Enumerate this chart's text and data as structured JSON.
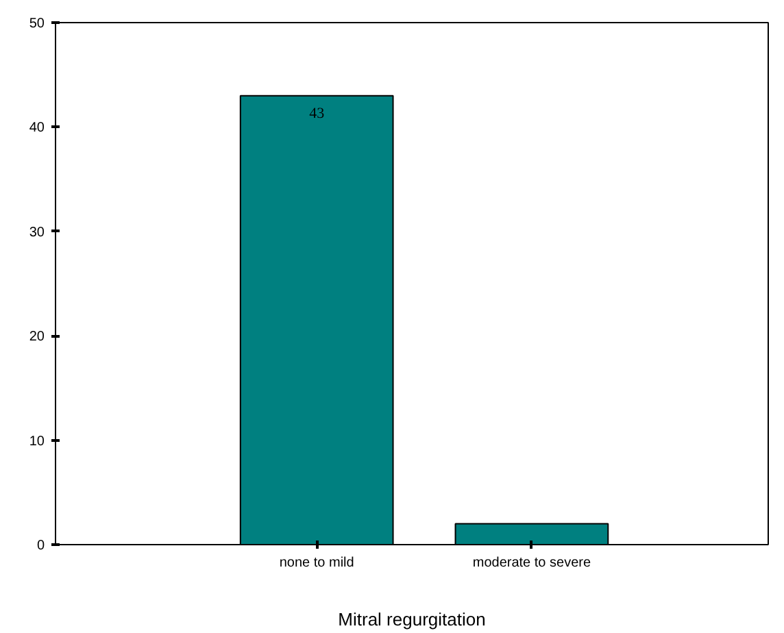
{
  "chart_data": {
    "type": "bar",
    "xlabel": "Mitral regurgitation",
    "categories": [
      "none to mild",
      "moderate to severe"
    ],
    "values": [
      43,
      2
    ],
    "value_labels": [
      "43",
      null
    ],
    "color": "#008080",
    "ylim": [
      0,
      50
    ],
    "yticks": [
      0,
      10,
      20,
      30,
      40,
      50
    ],
    "grid": false
  }
}
